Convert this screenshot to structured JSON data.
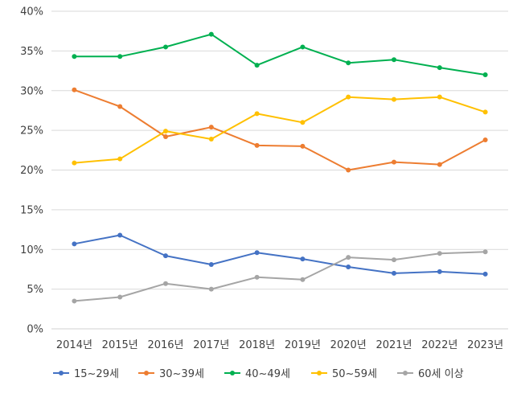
{
  "chart_data": {
    "type": "line",
    "categories": [
      "2014년",
      "2015년",
      "2016년",
      "2017년",
      "2018년",
      "2019년",
      "2020년",
      "2021년",
      "2022년",
      "2023년"
    ],
    "y_ticks": [
      "0%",
      "5%",
      "10%",
      "15%",
      "20%",
      "25%",
      "30%",
      "35%",
      "40%"
    ],
    "ylim": [
      0,
      40
    ],
    "grid": true,
    "legend_position": "bottom",
    "series": [
      {
        "name": "15~29세",
        "color": "#4472C4",
        "values": [
          10.7,
          11.8,
          9.2,
          8.1,
          9.6,
          8.8,
          7.8,
          7.0,
          7.2,
          6.9
        ]
      },
      {
        "name": "30~39세",
        "color": "#ED7D31",
        "values": [
          30.1,
          28.0,
          24.2,
          25.4,
          23.1,
          23.0,
          20.0,
          21.0,
          20.7,
          23.8
        ]
      },
      {
        "name": "40~49세",
        "color": "#00B050",
        "values": [
          34.3,
          34.3,
          35.5,
          37.1,
          33.2,
          35.5,
          33.5,
          33.9,
          32.9,
          32.0
        ]
      },
      {
        "name": "50~59세",
        "color": "#FFC000",
        "values": [
          20.9,
          21.4,
          24.9,
          23.9,
          27.1,
          26.0,
          29.2,
          28.9,
          29.2,
          27.3
        ]
      },
      {
        "name": "60세 이상",
        "color": "#A5A5A5",
        "values": [
          3.5,
          4.0,
          5.7,
          5.0,
          6.5,
          6.2,
          9.0,
          8.7,
          9.5,
          9.7
        ]
      }
    ]
  }
}
